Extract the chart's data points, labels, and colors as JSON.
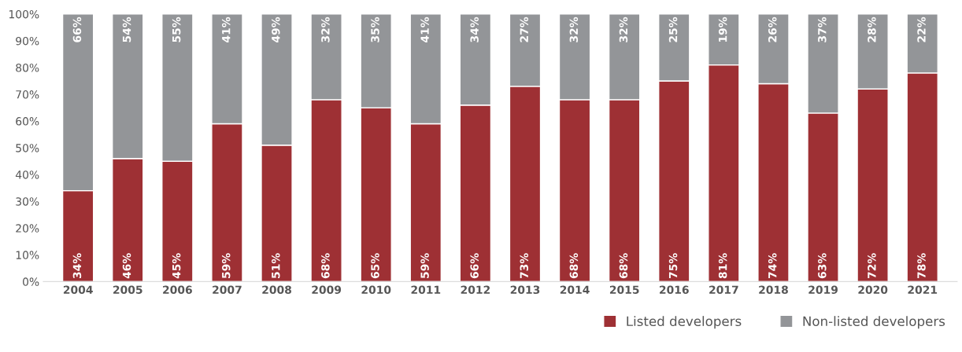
{
  "chart_data": {
    "type": "bar",
    "stacked": true,
    "categories": [
      "2004",
      "2005",
      "2006",
      "2007",
      "2008",
      "2009",
      "2010",
      "2011",
      "2012",
      "2013",
      "2014",
      "2015",
      "2016",
      "2017",
      "2018",
      "2019",
      "2020",
      "2021"
    ],
    "series": [
      {
        "name": "Listed developers",
        "color": "#9e3034",
        "values": [
          34,
          46,
          45,
          59,
          51,
          68,
          65,
          59,
          66,
          73,
          68,
          68,
          75,
          81,
          74,
          63,
          72,
          78
        ],
        "value_labels": [
          "34%",
          "46%",
          "45%",
          "59%",
          "51%",
          "68%",
          "65%",
          "59%",
          "66%",
          "73%",
          "68%",
          "68%",
          "75%",
          "81%",
          "74%",
          "63%",
          "72%",
          "78%"
        ]
      },
      {
        "name": "Non-listed developers",
        "color": "#939598",
        "values": [
          66,
          54,
          55,
          41,
          49,
          32,
          35,
          41,
          34,
          27,
          32,
          32,
          25,
          19,
          26,
          37,
          28,
          22
        ],
        "value_labels": [
          "66%",
          "54%",
          "55%",
          "41%",
          "49%",
          "32%",
          "35%",
          "41%",
          "34%",
          "27%",
          "32%",
          "32%",
          "25%",
          "19%",
          "26%",
          "37%",
          "28%",
          "22%"
        ]
      }
    ],
    "ylim": [
      0,
      100
    ],
    "yticks": [
      {
        "value": 0,
        "label": "0%"
      },
      {
        "value": 10,
        "label": "10%"
      },
      {
        "value": 20,
        "label": "20%"
      },
      {
        "value": 30,
        "label": "30%"
      },
      {
        "value": 40,
        "label": "40%"
      },
      {
        "value": 50,
        "label": "50%"
      },
      {
        "value": 60,
        "label": "60%"
      },
      {
        "value": 70,
        "label": "70%"
      },
      {
        "value": 80,
        "label": "80%"
      },
      {
        "value": 90,
        "label": "90%"
      },
      {
        "value": 100,
        "label": "100%"
      }
    ],
    "grid": false,
    "legend": "bottom right"
  }
}
